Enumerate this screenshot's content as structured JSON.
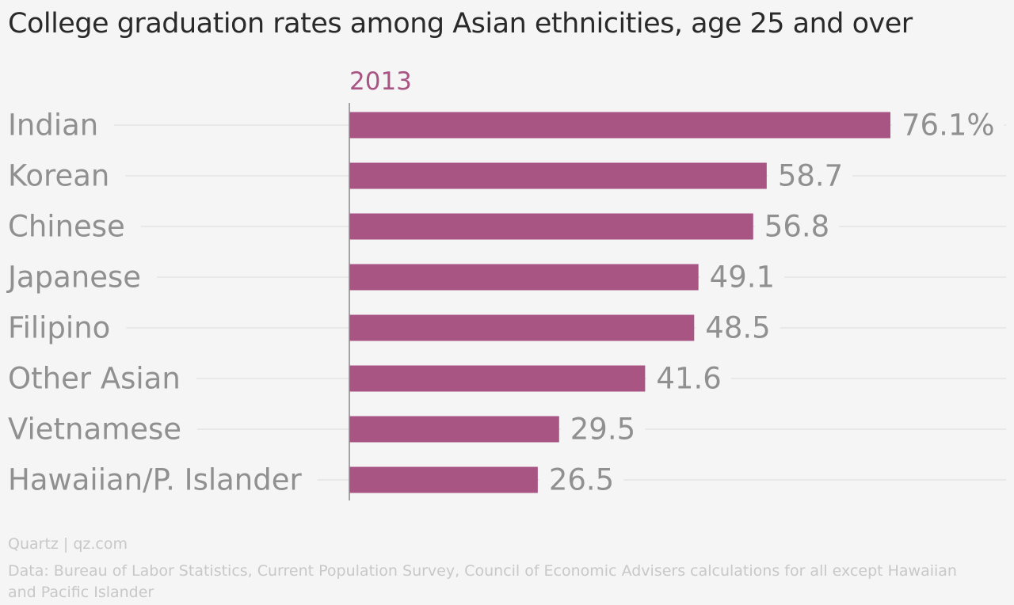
{
  "title": "College graduation rates among Asian ethnicities, age 25 and over",
  "footer": {
    "source": "Quartz | qz.com",
    "note": "Data: Bureau of Labor Statistics, Current Population Survey, Council of Economic Advisers calculations for all except Hawaiian and Pacific Islander"
  },
  "colors": {
    "bar": "#a85583",
    "series_label": "#a85583",
    "category_label": "#909090",
    "value_label": "#909090",
    "gridline": "#e3e3e3",
    "axis": "#8a8a8a",
    "background": "#f5f5f5"
  },
  "chart_data": {
    "type": "bar",
    "orientation": "horizontal",
    "title": "College graduation rates among Asian ethnicities, age 25 and over",
    "xlabel": "",
    "ylabel": "",
    "categories": [
      "Indian",
      "Korean",
      "Chinese",
      "Japanese",
      "Filipino",
      "Other Asian",
      "Vietnamese",
      "Hawaiian/P. Islander"
    ],
    "series": [
      {
        "name": "2013",
        "values": [
          76.1,
          58.7,
          56.8,
          49.1,
          48.5,
          41.6,
          29.5,
          26.5
        ],
        "labels": [
          "76.1%",
          "58.7",
          "56.8",
          "49.1",
          "48.5",
          "41.6",
          "29.5",
          "26.5"
        ]
      }
    ],
    "xlim": [
      0,
      76.1
    ],
    "grid": true,
    "legend": "none"
  }
}
